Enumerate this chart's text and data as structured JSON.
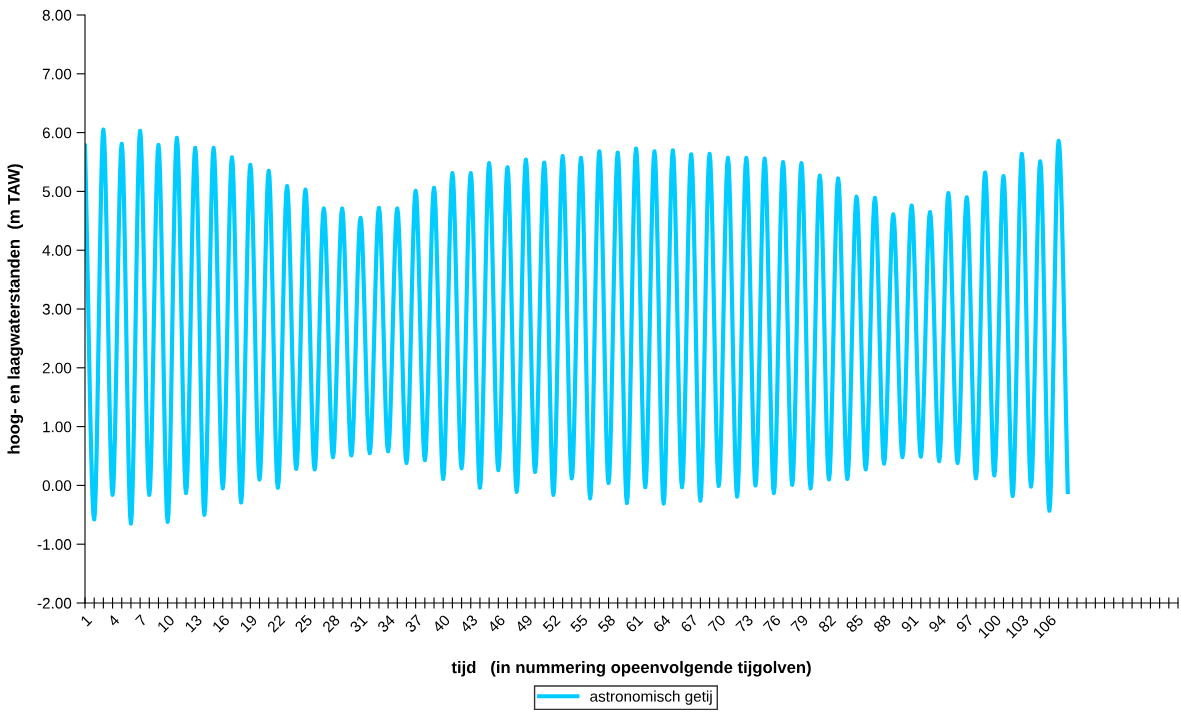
{
  "chart_data": {
    "type": "line",
    "xlabel": "tijd   (in nummering opeenvolgende tijgolven)",
    "ylabel": "hoog- en laagwaterstanden  (m TAW)",
    "categories": [
      "1",
      null,
      null,
      "4",
      null,
      null,
      "7",
      null,
      null,
      "10",
      null,
      null,
      "13",
      null,
      null,
      "16",
      null,
      null,
      "19",
      null,
      null,
      "22",
      null,
      null,
      "25",
      null,
      null,
      "28",
      null,
      null,
      "31",
      null,
      null,
      "34",
      null,
      null,
      "37",
      null,
      null,
      "40",
      null,
      null,
      "43",
      null,
      null,
      "46",
      null,
      null,
      "49",
      null,
      null,
      "52",
      null,
      null,
      "55",
      null,
      null,
      "58",
      null,
      null,
      "61",
      null,
      null,
      "64",
      null,
      null,
      "67",
      null,
      null,
      "70",
      null,
      null,
      "73",
      null,
      null,
      "76",
      null,
      null,
      "79",
      null,
      null,
      "82",
      null,
      null,
      "85",
      null,
      null,
      "88",
      null,
      null,
      "91",
      null,
      null,
      "94",
      null,
      null,
      "97",
      null,
      null,
      "100",
      null,
      null,
      "103",
      null,
      null,
      "106",
      null,
      null,
      null,
      null,
      null,
      null,
      null,
      null,
      null,
      null,
      null,
      null,
      null,
      null
    ],
    "series": [
      {
        "name": "astronomisch getij",
        "color": "#00ccff",
        "values": [
          5.78,
          -0.58,
          6.05,
          -0.16,
          5.81,
          -0.65,
          6.03,
          -0.16,
          5.79,
          -0.62,
          5.91,
          -0.13,
          5.74,
          -0.5,
          5.74,
          -0.05,
          5.58,
          -0.29,
          5.45,
          0.1,
          5.35,
          -0.04,
          5.09,
          0.28,
          5.03,
          0.27,
          4.71,
          0.48,
          4.71,
          0.51,
          4.55,
          0.55,
          4.72,
          0.58,
          4.71,
          0.38,
          5.01,
          0.43,
          5.06,
          0.11,
          5.31,
          0.29,
          5.31,
          -0.04,
          5.48,
          0.26,
          5.41,
          -0.11,
          5.54,
          0.23,
          5.49,
          -0.16,
          5.6,
          0.12,
          5.57,
          -0.22,
          5.68,
          0.04,
          5.66,
          -0.3,
          5.73,
          -0.03,
          5.68,
          -0.31,
          5.7,
          -0.03,
          5.63,
          -0.26,
          5.64,
          -0.01,
          5.57,
          -0.19,
          5.57,
          0.0,
          5.56,
          -0.13,
          5.5,
          0.01,
          5.48,
          -0.05,
          5.27,
          0.1,
          5.22,
          0.11,
          4.91,
          0.27,
          4.89,
          0.37,
          4.61,
          0.48,
          4.76,
          0.49,
          4.65,
          0.41,
          4.97,
          0.38,
          4.9,
          0.12,
          5.32,
          0.17,
          5.26,
          -0.18,
          5.64,
          -0.02,
          5.51,
          -0.43,
          5.86,
          -0.11,
          null,
          null,
          null,
          null,
          null,
          null,
          null,
          null,
          null,
          null,
          null,
          null
        ]
      }
    ],
    "ylim": [
      -2,
      8
    ],
    "yticks": [
      {
        "value": -2,
        "label": "-2.00"
      },
      {
        "value": -1,
        "label": "-1.00"
      },
      {
        "value": 0,
        "label": "0.00"
      },
      {
        "value": 1,
        "label": "1.00"
      },
      {
        "value": 2,
        "label": "2.00"
      },
      {
        "value": 3,
        "label": "3.00"
      },
      {
        "value": 4,
        "label": "4.00"
      },
      {
        "value": 5,
        "label": "5.00"
      },
      {
        "value": 6,
        "label": "6.00"
      },
      {
        "value": 7,
        "label": "7.00"
      },
      {
        "value": 8,
        "label": "8.00"
      }
    ],
    "grid": false,
    "legend": "bottom",
    "marker": "none",
    "line_style": "solid"
  }
}
